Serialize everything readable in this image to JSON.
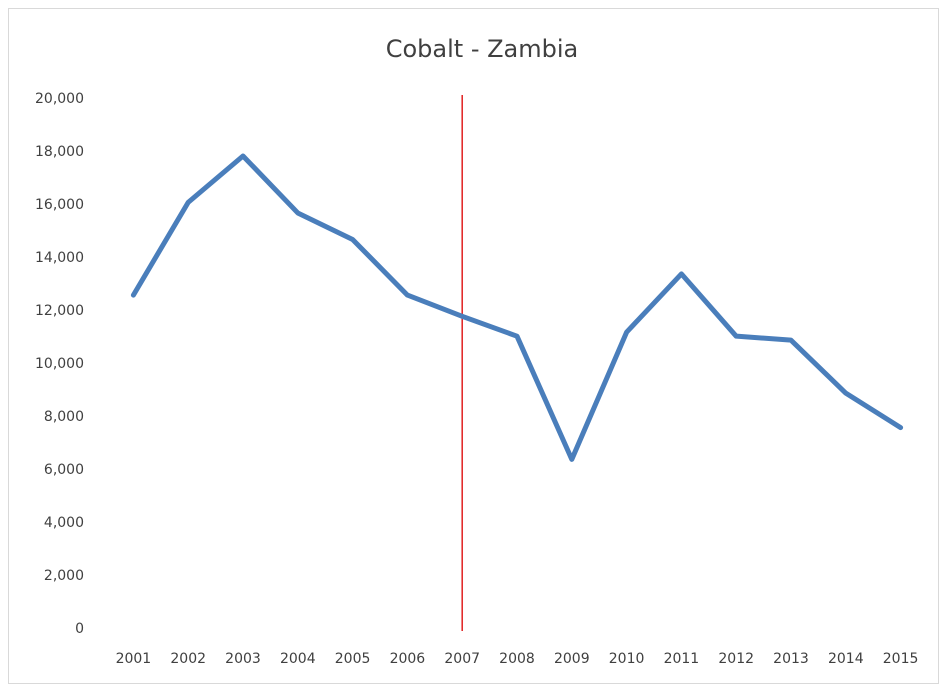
{
  "chart_data": {
    "type": "line",
    "title": "Cobalt - Zambia",
    "categories": [
      "2001",
      "2002",
      "2003",
      "2004",
      "2005",
      "2006",
      "2007",
      "2008",
      "2009",
      "2010",
      "2011",
      "2012",
      "2013",
      "2014",
      "2015"
    ],
    "values": [
      12600,
      16100,
      17850,
      15700,
      14700,
      12600,
      11800,
      11050,
      6400,
      11200,
      13400,
      11050,
      10900,
      8900,
      7600
    ],
    "color": "#4a7ebb",
    "ylim": [
      0,
      20000
    ],
    "yticks": [
      0,
      {
        "value": 2000,
        "label": "2,000"
      },
      {
        "value": 4000,
        "label": "4,000"
      },
      {
        "value": 6000,
        "label": "6,000"
      },
      {
        "value": 8000,
        "label": "8,000"
      },
      {
        "value": 10000,
        "label": "10,000"
      },
      {
        "value": 12000,
        "label": "12,000"
      },
      {
        "value": 14000,
        "label": "14,000"
      },
      {
        "value": 16000,
        "label": "16,000"
      },
      {
        "value": 18000,
        "label": "18,000"
      },
      {
        "value": 20000,
        "label": "20,000"
      }
    ],
    "grid": false,
    "vline_at": "2007",
    "vline_color": "#e02020"
  }
}
